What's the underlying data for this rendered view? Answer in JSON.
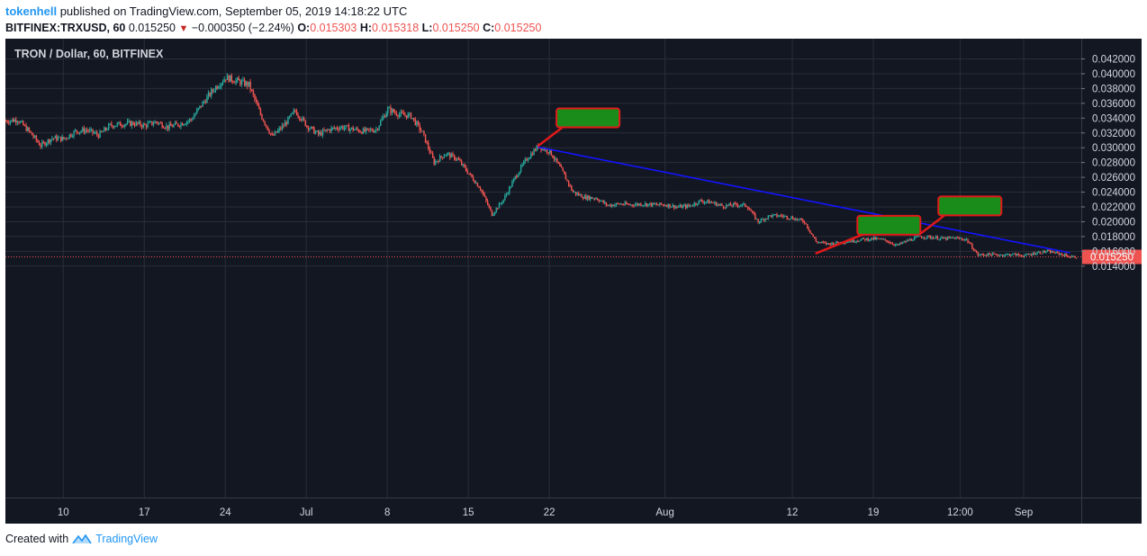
{
  "header": {
    "author": "tokenhell",
    "published_text": " published on TradingView.com, September 05, 2019 14:18:22 UTC",
    "symbol": "BITFINEX:TRXUSD, 60",
    "last": "0.015250",
    "change_arrow": "▼",
    "change": "−0.000350 (−2.24%)",
    "o_label": "O:",
    "o_value": "0.015303",
    "h_label": "H:",
    "h_value": "0.015318",
    "l_label": "L:",
    "l_value": "0.015250",
    "c_label": "C:",
    "c_value": "0.015250"
  },
  "chart_title": "TRON / Dollar, 60, BITFINEX",
  "footer": {
    "created_with": "Created with",
    "brand": "TradingView"
  },
  "colors": {
    "background": "#131722",
    "up": "#26a69a",
    "down": "#ef5350",
    "trendline": "#1414ff",
    "callout_fill": "#1a8c1a",
    "callout_border": "#e11919",
    "last_price": "#ef5350"
  },
  "chart_data": {
    "type": "candlestick",
    "title": "TRON / Dollar, 60, BITFINEX",
    "x_ticks": [
      "10",
      "17",
      "24",
      "Jul",
      "8",
      "15",
      "22",
      "Aug",
      "12",
      "19",
      "12:00",
      "Sep"
    ],
    "y_ticks": [
      "0.042000",
      "0.040000",
      "0.038000",
      "0.036000",
      "0.034000",
      "0.032000",
      "0.030000",
      "0.028000",
      "0.026000",
      "0.024000",
      "0.022000",
      "0.020000",
      "0.018000",
      "0.016000",
      "0.014000"
    ],
    "ylim": [
      0.0125,
      0.0435
    ],
    "last_price_label": "0.015250",
    "last_price": 0.01525,
    "price_path": [
      [
        "2019-06-05",
        0.0336
      ],
      [
        "2019-06-06",
        0.0338
      ],
      [
        "2019-06-07",
        0.0322
      ],
      [
        "2019-06-08",
        0.0303
      ],
      [
        "2019-06-09",
        0.0313
      ],
      [
        "2019-06-10",
        0.0312
      ],
      [
        "2019-06-11",
        0.0322
      ],
      [
        "2019-06-12",
        0.0324
      ],
      [
        "2019-06-13",
        0.0317
      ],
      [
        "2019-06-14",
        0.033
      ],
      [
        "2019-06-15",
        0.0332
      ],
      [
        "2019-06-16",
        0.0333
      ],
      [
        "2019-06-17",
        0.033
      ],
      [
        "2019-06-18",
        0.0335
      ],
      [
        "2019-06-19",
        0.0328
      ],
      [
        "2019-06-20",
        0.0332
      ],
      [
        "2019-06-21",
        0.0338
      ],
      [
        "2019-06-22",
        0.036
      ],
      [
        "2019-06-23",
        0.038
      ],
      [
        "2019-06-24",
        0.0395
      ],
      [
        "2019-06-25",
        0.039
      ],
      [
        "2019-06-26",
        0.0385
      ],
      [
        "2019-06-27",
        0.0345
      ],
      [
        "2019-06-28",
        0.0315
      ],
      [
        "2019-06-29",
        0.033
      ],
      [
        "2019-06-30",
        0.035
      ],
      [
        "2019-07-01",
        0.033
      ],
      [
        "2019-07-02",
        0.0318
      ],
      [
        "2019-07-03",
        0.0325
      ],
      [
        "2019-07-04",
        0.0328
      ],
      [
        "2019-07-05",
        0.0325
      ],
      [
        "2019-07-06",
        0.0322
      ],
      [
        "2019-07-07",
        0.0325
      ],
      [
        "2019-07-08",
        0.0352
      ],
      [
        "2019-07-09",
        0.0345
      ],
      [
        "2019-07-10",
        0.0343
      ],
      [
        "2019-07-11",
        0.032
      ],
      [
        "2019-07-12",
        0.028
      ],
      [
        "2019-07-13",
        0.0292
      ],
      [
        "2019-07-14",
        0.0285
      ],
      [
        "2019-07-15",
        0.0265
      ],
      [
        "2019-07-16",
        0.0245
      ],
      [
        "2019-07-17",
        0.021
      ],
      [
        "2019-07-18",
        0.023
      ],
      [
        "2019-07-19",
        0.026
      ],
      [
        "2019-07-20",
        0.0285
      ],
      [
        "2019-07-21",
        0.0302
      ],
      [
        "2019-07-22",
        0.0295
      ],
      [
        "2019-07-23",
        0.027
      ],
      [
        "2019-07-24",
        0.024
      ],
      [
        "2019-07-25",
        0.0233
      ],
      [
        "2019-07-26",
        0.0232
      ],
      [
        "2019-07-27",
        0.0222
      ],
      [
        "2019-07-28",
        0.0224
      ],
      [
        "2019-07-29",
        0.0223
      ],
      [
        "2019-07-30",
        0.0224
      ],
      [
        "2019-07-31",
        0.0223
      ],
      [
        "2019-08-01",
        0.0223
      ],
      [
        "2019-08-02",
        0.022
      ],
      [
        "2019-08-03",
        0.0221
      ],
      [
        "2019-08-04",
        0.0228
      ],
      [
        "2019-08-05",
        0.0226
      ],
      [
        "2019-08-06",
        0.0221
      ],
      [
        "2019-08-07",
        0.0223
      ],
      [
        "2019-08-08",
        0.0222
      ],
      [
        "2019-08-09",
        0.02
      ],
      [
        "2019-08-10",
        0.0208
      ],
      [
        "2019-08-11",
        0.0208
      ],
      [
        "2019-08-12",
        0.0205
      ],
      [
        "2019-08-13",
        0.02
      ],
      [
        "2019-08-14",
        0.0173
      ],
      [
        "2019-08-15",
        0.017
      ],
      [
        "2019-08-16",
        0.0172
      ],
      [
        "2019-08-17",
        0.0174
      ],
      [
        "2019-08-18",
        0.0176
      ],
      [
        "2019-08-19",
        0.0177
      ],
      [
        "2019-08-20",
        0.0175
      ],
      [
        "2019-08-21",
        0.0168
      ],
      [
        "2019-08-22",
        0.0175
      ],
      [
        "2019-08-23",
        0.018
      ],
      [
        "2019-08-24",
        0.0179
      ],
      [
        "2019-08-25",
        0.0177
      ],
      [
        "2019-08-26",
        0.0178
      ],
      [
        "2019-08-27",
        0.0176
      ],
      [
        "2019-08-28",
        0.0155
      ],
      [
        "2019-08-29",
        0.0156
      ],
      [
        "2019-08-30",
        0.0155
      ],
      [
        "2019-08-31",
        0.0156
      ],
      [
        "2019-09-01",
        0.0154
      ],
      [
        "2019-09-02",
        0.0158
      ],
      [
        "2019-09-03",
        0.016
      ],
      [
        "2019-09-04",
        0.0157
      ],
      [
        "2019-09-05",
        0.01525
      ]
    ],
    "trendline": {
      "from": [
        "2019-07-21",
        0.0301
      ],
      "to": [
        "2019-09-05",
        0.0158
      ]
    },
    "callouts": [
      {
        "anchor": [
          "2019-07-21",
          0.0302
        ],
        "box_date": "2019-07-22"
      },
      {
        "anchor": [
          "2019-08-14",
          0.0157
        ],
        "box_date": "2019-08-17"
      },
      {
        "anchor": [
          "2019-08-23",
          0.0183
        ],
        "box_date": "2019-08-24"
      }
    ]
  }
}
